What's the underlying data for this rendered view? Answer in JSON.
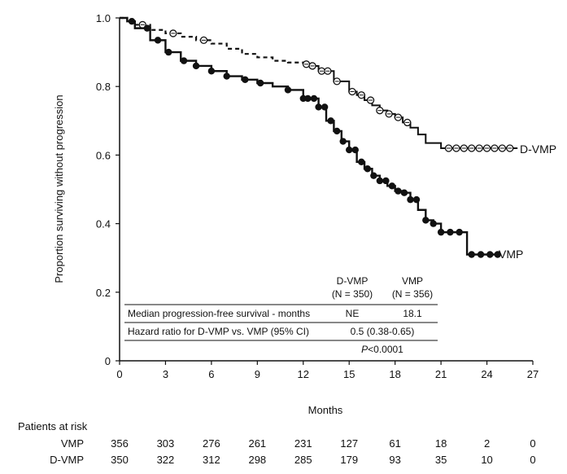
{
  "chart_data": {
    "type": "line",
    "xlabel": "Months",
    "ylabel": "Proportion surviving without progression",
    "xlim": [
      0,
      27
    ],
    "ylim": [
      0,
      1.0
    ],
    "x_ticks": [
      "0",
      "3",
      "6",
      "9",
      "12",
      "15",
      "18",
      "21",
      "24",
      "27"
    ],
    "y_ticks": [
      "0",
      "0.2",
      "0.4",
      "0.6",
      "0.8",
      "1.0"
    ],
    "grid": false,
    "series": [
      {
        "name": "D-VMP",
        "color": "#111111",
        "line_style": "dashed-then-solid",
        "marker": "open-circle",
        "x": [
          0,
          0.5,
          1,
          2,
          3,
          4,
          5,
          6,
          7,
          8,
          9,
          10,
          11,
          12,
          12.5,
          13,
          14,
          15,
          15.5,
          16,
          16.5,
          17,
          17.5,
          18,
          18.5,
          19,
          19.5,
          20,
          20.5,
          21,
          22,
          23,
          24,
          25,
          26
        ],
        "y": [
          1.0,
          0.99,
          0.98,
          0.965,
          0.955,
          0.945,
          0.935,
          0.925,
          0.91,
          0.895,
          0.885,
          0.875,
          0.87,
          0.865,
          0.86,
          0.845,
          0.815,
          0.785,
          0.775,
          0.76,
          0.745,
          0.73,
          0.72,
          0.71,
          0.695,
          0.68,
          0.66,
          0.635,
          0.635,
          0.62,
          0.62,
          0.62,
          0.62,
          0.62,
          0.62
        ],
        "censor_x": [
          1.5,
          3.5,
          5.5,
          12.2,
          12.6,
          13.2,
          13.6,
          14.2,
          15.2,
          15.8,
          16.4,
          17.0,
          17.6,
          18.2,
          18.8,
          21.5,
          22.0,
          22.5,
          23.0,
          23.5,
          24.0,
          24.5,
          25.0,
          25.5
        ]
      },
      {
        "name": "VMP",
        "color": "#111111",
        "line_style": "solid",
        "marker": "filled-circle",
        "x": [
          0,
          0.5,
          1,
          2,
          3,
          4,
          5,
          6,
          7,
          8,
          9,
          10,
          11,
          12,
          12.5,
          13,
          13.5,
          14,
          14.5,
          15,
          15.5,
          16,
          16.5,
          17,
          17.5,
          18,
          18.5,
          19,
          19.5,
          20,
          20.5,
          21,
          22,
          22.7,
          22.7,
          23,
          24,
          24.7
        ],
        "y": [
          1.0,
          0.99,
          0.97,
          0.935,
          0.9,
          0.875,
          0.86,
          0.845,
          0.83,
          0.82,
          0.81,
          0.8,
          0.79,
          0.765,
          0.765,
          0.74,
          0.7,
          0.67,
          0.64,
          0.615,
          0.58,
          0.56,
          0.54,
          0.525,
          0.51,
          0.495,
          0.49,
          0.47,
          0.44,
          0.41,
          0.4,
          0.375,
          0.375,
          0.375,
          0.31,
          0.31,
          0.31,
          0.31
        ],
        "censor_x": [
          0.8,
          1.8,
          2.5,
          3.2,
          4.2,
          5.0,
          6.0,
          7.0,
          8.2,
          9.2,
          11.0,
          12.0,
          12.3,
          12.7,
          13.0,
          13.4,
          13.8,
          14.2,
          14.6,
          15.0,
          15.4,
          15.8,
          16.2,
          16.6,
          17.0,
          17.4,
          17.8,
          18.2,
          18.6,
          19.0,
          19.4,
          20.0,
          20.5,
          21.0,
          21.6,
          22.2,
          23.0,
          23.6,
          24.2,
          24.7
        ]
      }
    ],
    "annotations": {
      "d_vmp_label": "D-VMP",
      "vmp_label": "VMP"
    }
  },
  "summary_table": {
    "col1_header_line1": "D-VMP",
    "col1_header_line2": "(N = 350)",
    "col2_header_line1": "VMP",
    "col2_header_line2": "(N = 356)",
    "row1_label": "Median progression-free survival - months",
    "row1_col1": "NE",
    "row1_col2": "18.1",
    "row2_label": "Hazard ratio for D-VMP vs. VMP (95% CI)",
    "row2_value": "0.5 (0.38-0.65)",
    "row3_p": "P",
    "row3_value": "<0.0001"
  },
  "risk_table": {
    "title": "Patients at risk",
    "rows": [
      {
        "label": "VMP",
        "values": [
          "356",
          "303",
          "276",
          "261",
          "231",
          "127",
          "61",
          "18",
          "2",
          "0"
        ]
      },
      {
        "label": "D-VMP",
        "values": [
          "350",
          "322",
          "312",
          "298",
          "285",
          "179",
          "93",
          "35",
          "10",
          "0"
        ]
      }
    ]
  }
}
